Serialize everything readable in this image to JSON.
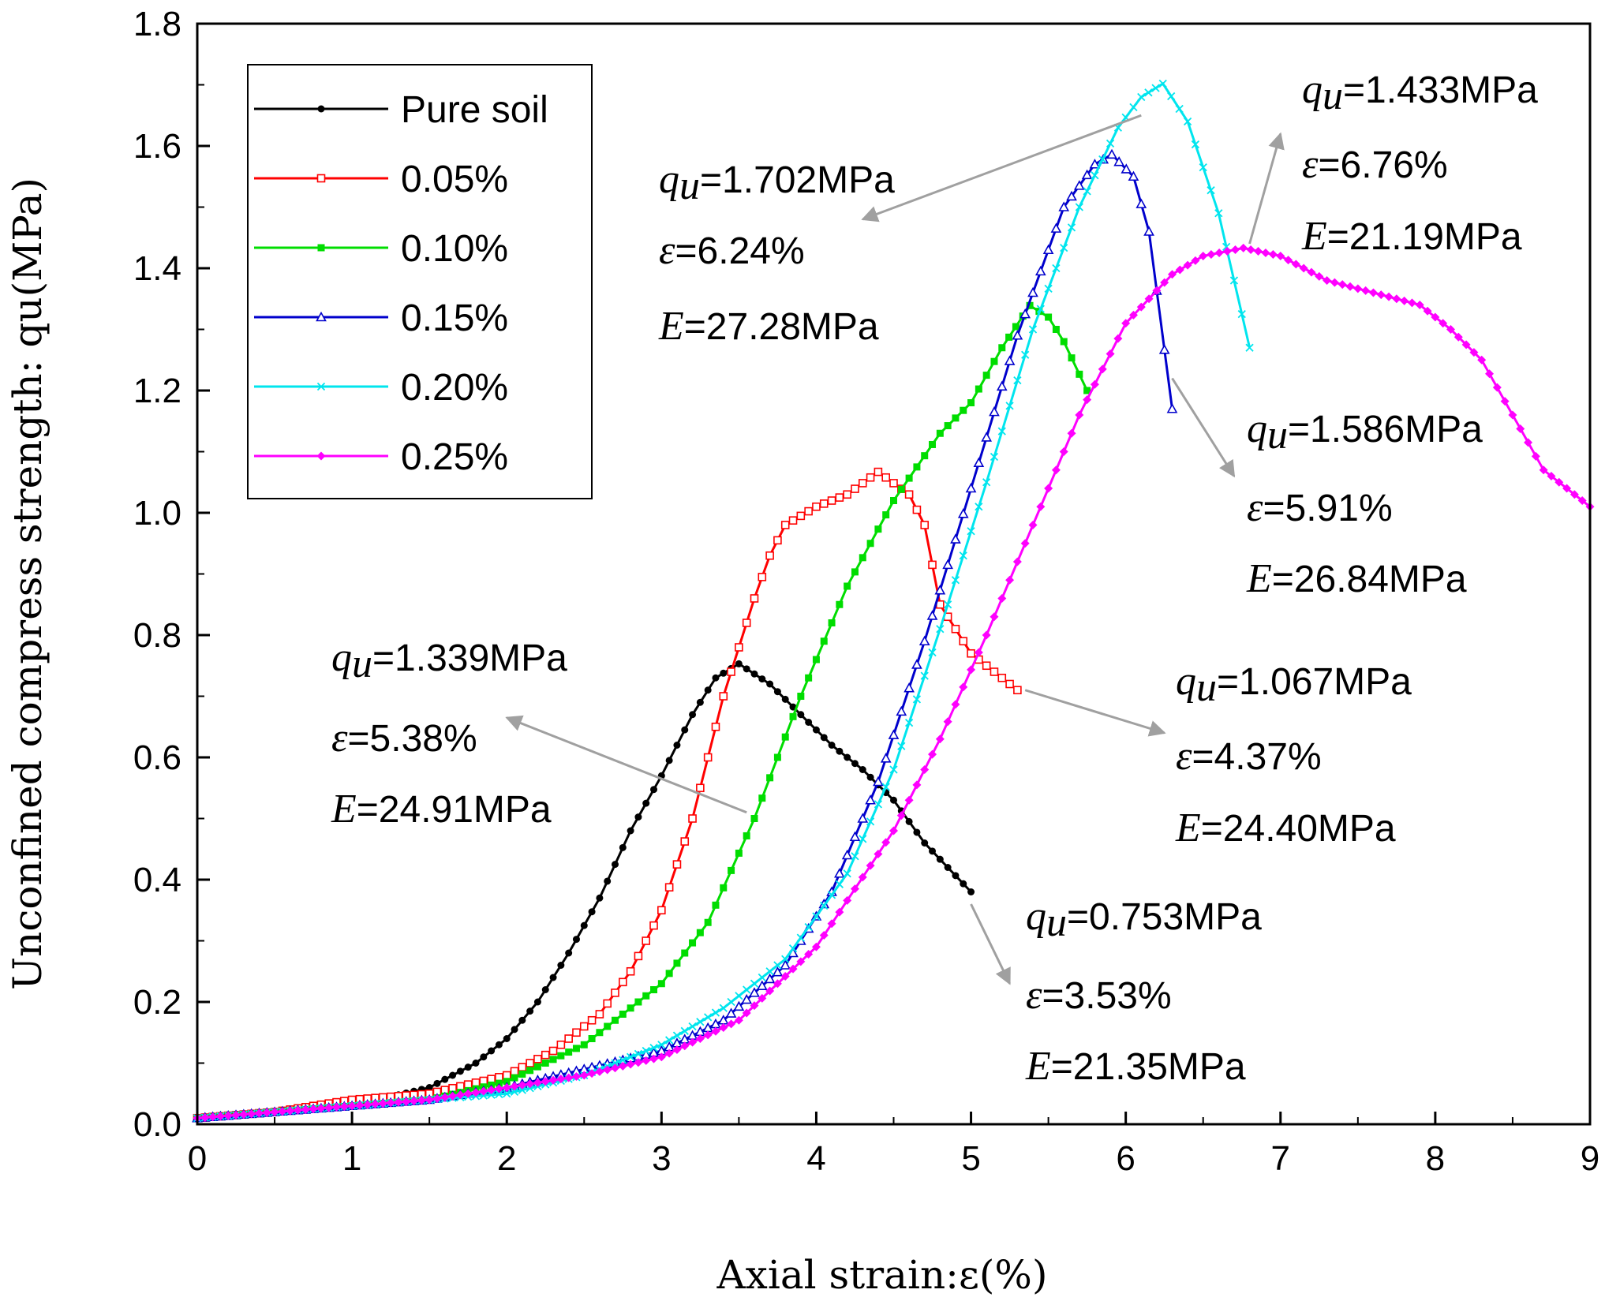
{
  "chart_data": {
    "type": "line",
    "title": "",
    "xlabel": "Axial strain:ε(%)",
    "ylabel": "Unconfined compress strength: qu(MPa)",
    "xlim": [
      0,
      9
    ],
    "ylim": [
      0,
      1.8
    ],
    "xticks": [
      "0",
      "1",
      "2",
      "3",
      "4",
      "5",
      "6",
      "7",
      "8",
      "9"
    ],
    "yticks": [
      "0.0",
      "0.2",
      "0.4",
      "0.6",
      "0.8",
      "1.0",
      "1.2",
      "1.4",
      "1.6",
      "1.8"
    ],
    "legend_position": "top-left",
    "series": [
      {
        "name": "Pure soil",
        "color": "#000000",
        "marker": "filled-circle",
        "x": [
          0,
          0.5,
          1.0,
          1.5,
          1.8,
          2.0,
          2.2,
          2.4,
          2.6,
          2.8,
          3.0,
          3.2,
          3.35,
          3.5,
          3.7,
          3.9,
          4.1,
          4.3,
          4.5,
          4.7,
          4.85,
          5.0
        ],
        "y": [
          0.01,
          0.02,
          0.03,
          0.06,
          0.1,
          0.14,
          0.2,
          0.28,
          0.37,
          0.48,
          0.57,
          0.67,
          0.73,
          0.753,
          0.72,
          0.67,
          0.62,
          0.58,
          0.53,
          0.46,
          0.42,
          0.38
        ]
      },
      {
        "name": "0.05%",
        "color": "#ff0000",
        "marker": "open-square",
        "x": [
          0,
          0.5,
          1.0,
          1.5,
          2.0,
          2.3,
          2.6,
          2.8,
          3.0,
          3.2,
          3.4,
          3.6,
          3.7,
          3.8,
          4.0,
          4.2,
          4.4,
          4.6,
          4.7,
          4.8,
          5.0,
          5.2,
          5.3
        ],
        "y": [
          0.01,
          0.02,
          0.04,
          0.05,
          0.08,
          0.12,
          0.18,
          0.25,
          0.35,
          0.5,
          0.7,
          0.86,
          0.93,
          0.98,
          1.01,
          1.03,
          1.067,
          1.03,
          0.98,
          0.85,
          0.77,
          0.73,
          0.71
        ]
      },
      {
        "name": "0.10%",
        "color": "#00dd00",
        "marker": "filled-square",
        "x": [
          0,
          0.5,
          1.0,
          1.5,
          2.0,
          2.5,
          3.0,
          3.3,
          3.6,
          3.9,
          4.2,
          4.5,
          4.8,
          5.0,
          5.2,
          5.38,
          5.5,
          5.6,
          5.75
        ],
        "y": [
          0.01,
          0.02,
          0.03,
          0.04,
          0.07,
          0.13,
          0.23,
          0.33,
          0.5,
          0.7,
          0.88,
          1.02,
          1.13,
          1.18,
          1.27,
          1.339,
          1.32,
          1.28,
          1.2
        ]
      },
      {
        "name": "0.15%",
        "color": "#0000cc",
        "marker": "open-triangle",
        "x": [
          0,
          0.5,
          1.0,
          1.5,
          2.0,
          2.5,
          3.0,
          3.4,
          3.8,
          4.1,
          4.4,
          4.7,
          5.0,
          5.3,
          5.6,
          5.8,
          5.91,
          6.05,
          6.15,
          6.3
        ],
        "y": [
          0.01,
          0.02,
          0.03,
          0.04,
          0.06,
          0.09,
          0.12,
          0.17,
          0.26,
          0.38,
          0.56,
          0.79,
          1.04,
          1.29,
          1.5,
          1.57,
          1.586,
          1.55,
          1.46,
          1.17
        ]
      },
      {
        "name": "0.20%",
        "color": "#00e5ee",
        "marker": "cross",
        "x": [
          0,
          0.5,
          1.0,
          1.5,
          2.0,
          2.5,
          3.0,
          3.4,
          3.8,
          4.2,
          4.5,
          4.8,
          5.1,
          5.4,
          5.7,
          5.95,
          6.1,
          6.24,
          6.4,
          6.6,
          6.8
        ],
        "y": [
          0.01,
          0.02,
          0.03,
          0.04,
          0.05,
          0.08,
          0.13,
          0.19,
          0.27,
          0.41,
          0.58,
          0.81,
          1.05,
          1.3,
          1.5,
          1.63,
          1.68,
          1.702,
          1.64,
          1.49,
          1.27
        ]
      },
      {
        "name": "0.25%",
        "color": "#ff00ff",
        "marker": "filled-diamond",
        "x": [
          0,
          0.5,
          1.0,
          1.5,
          2.0,
          2.5,
          3.0,
          3.5,
          4.0,
          4.5,
          4.8,
          5.1,
          5.4,
          5.7,
          6.0,
          6.3,
          6.5,
          6.76,
          7.0,
          7.3,
          7.6,
          7.9,
          8.1,
          8.3,
          8.5,
          8.7,
          9.0
        ],
        "y": [
          0.01,
          0.02,
          0.03,
          0.04,
          0.06,
          0.08,
          0.11,
          0.17,
          0.29,
          0.48,
          0.63,
          0.8,
          0.98,
          1.16,
          1.31,
          1.39,
          1.42,
          1.433,
          1.42,
          1.38,
          1.36,
          1.34,
          1.3,
          1.25,
          1.16,
          1.07,
          1.01
        ]
      }
    ],
    "annotations": [
      {
        "id": "a1702",
        "qu": "=1.702MPa",
        "eps": "=6.24%",
        "E": "=27.28MPa",
        "arrow_from": [
          6.1,
          1.65
        ],
        "arrow_to": [
          4.3,
          1.48
        ]
      },
      {
        "id": "a1433",
        "qu": "=1.433MPa",
        "eps": "=6.76%",
        "E": "=21.19MPa",
        "arrow_from": [
          6.8,
          1.44
        ],
        "arrow_to": [
          7.0,
          1.62
        ]
      },
      {
        "id": "a1586",
        "qu": "=1.586MPa",
        "eps": "=5.91%",
        "E": "=26.84MPa",
        "arrow_from": [
          6.3,
          1.22
        ],
        "arrow_to": [
          6.7,
          1.06
        ]
      },
      {
        "id": "a1067",
        "qu": "=1.067MPa",
        "eps": "=4.37%",
        "E": "=24.40MPa",
        "arrow_from": [
          5.35,
          0.71
        ],
        "arrow_to": [
          6.25,
          0.64
        ]
      },
      {
        "id": "a1339",
        "qu": "=1.339MPa",
        "eps": "=5.38%",
        "E": "=24.91MPa",
        "arrow_from": [
          3.55,
          0.51
        ],
        "arrow_to": [
          2.0,
          0.665
        ]
      },
      {
        "id": "a0753",
        "qu": "=0.753MPa",
        "eps": "=3.53%",
        "E": "=21.35MPa",
        "arrow_from": [
          5.0,
          0.36
        ],
        "arrow_to": [
          5.25,
          0.23
        ]
      }
    ]
  }
}
